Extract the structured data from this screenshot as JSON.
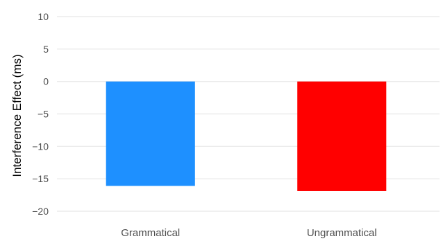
{
  "chart_data": {
    "type": "bar",
    "title": "",
    "xlabel": "",
    "ylabel": "Interference Effect (ms)",
    "categories": [
      "Grammatical",
      "Ungrammatical"
    ],
    "values": [
      -16.1,
      -16.9
    ],
    "colors": [
      "#1e90ff",
      "#ff0000"
    ],
    "ylim": [
      -21,
      11
    ],
    "yticks": [
      10,
      5,
      0,
      -5,
      -10,
      -15,
      -20
    ],
    "ytick_labels": [
      "10",
      "5",
      "0",
      "−5",
      "−10",
      "−15",
      "−20"
    ],
    "grid": true,
    "legend": "none"
  }
}
